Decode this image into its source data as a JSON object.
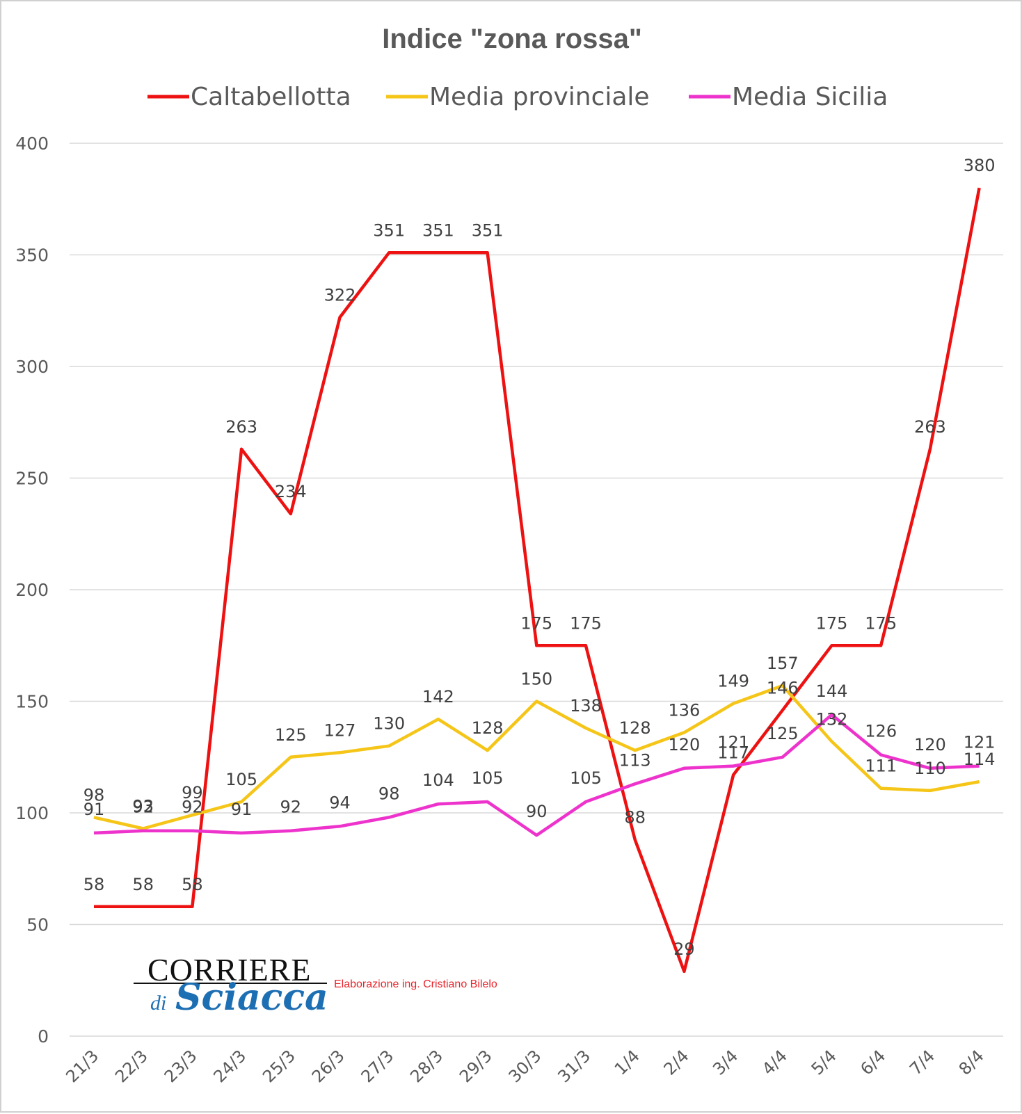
{
  "chart_data": {
    "type": "line",
    "title": "Indice \"zona rossa\"",
    "categories": [
      "21/3",
      "22/3",
      "23/3",
      "24/3",
      "25/3",
      "26/3",
      "27/3",
      "28/3",
      "29/3",
      "30/3",
      "31/3",
      "1/4",
      "2/4",
      "3/4",
      "4/4",
      "5/4",
      "6/4",
      "7/4",
      "8/4"
    ],
    "series": [
      {
        "name": "Caltabellotta",
        "color": "#ee1111",
        "values": [
          58,
          58,
          58,
          263,
          234,
          322,
          351,
          351,
          351,
          175,
          175,
          88,
          29,
          117,
          146,
          175,
          175,
          263,
          380
        ]
      },
      {
        "name": "Media provinciale",
        "color": "#f5c518",
        "values": [
          98,
          93,
          99,
          105,
          125,
          127,
          130,
          142,
          128,
          150,
          138,
          128,
          136,
          149,
          157,
          132,
          111,
          110,
          114
        ]
      },
      {
        "name": "Media Sicilia",
        "color": "#ee33cc",
        "values": [
          91,
          92,
          92,
          91,
          92,
          94,
          98,
          104,
          105,
          90,
          105,
          113,
          120,
          121,
          125,
          144,
          126,
          120,
          121
        ]
      }
    ],
    "yticks": [
      0,
      50,
      100,
      150,
      200,
      250,
      300,
      350,
      400
    ],
    "ylim": [
      0,
      400
    ],
    "grid": true,
    "legend_position": "top"
  },
  "logo": {
    "name": "CORRIERE",
    "di": "di",
    "script": "Sciacca",
    "credit": "Elaborazione ing. Cristiano Bilelo"
  }
}
